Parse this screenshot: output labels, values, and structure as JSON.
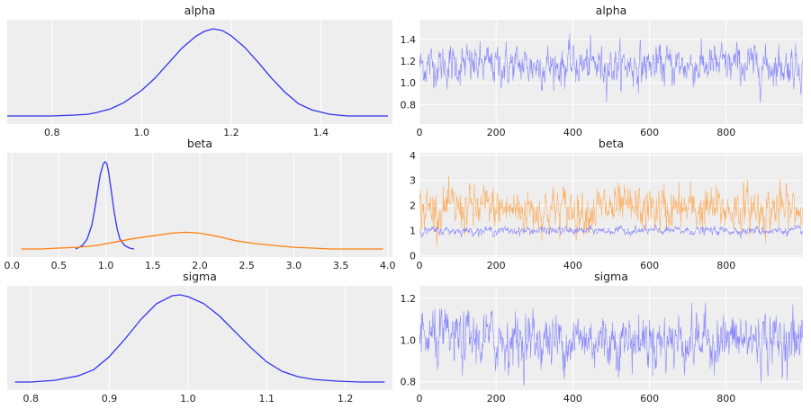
{
  "colors": {
    "blue": "#3333ee",
    "orange": "#ff7f0e",
    "trace_blue": "#6666ff",
    "trace_orange": "#ff9933",
    "panel_bg": "#eeeeee"
  },
  "chart_data": [
    {
      "type": "line",
      "kind": "density",
      "title": "alpha",
      "grid": true,
      "xlabel": "",
      "ylabel": "",
      "xlim": [
        0.7,
        1.56
      ],
      "xticks": [
        0.8,
        1.0,
        1.2,
        1.4
      ],
      "series": [
        {
          "color": "#3333ee",
          "x": [
            0.7,
            0.75,
            0.8,
            0.85,
            0.88,
            0.9,
            0.93,
            0.96,
            1.0,
            1.03,
            1.06,
            1.09,
            1.12,
            1.14,
            1.16,
            1.18,
            1.2,
            1.23,
            1.26,
            1.29,
            1.32,
            1.35,
            1.38,
            1.42,
            1.46,
            1.5,
            1.55
          ],
          "y": [
            0.01,
            0.01,
            0.01,
            0.02,
            0.03,
            0.05,
            0.09,
            0.16,
            0.3,
            0.44,
            0.61,
            0.78,
            0.91,
            0.97,
            1.0,
            0.98,
            0.92,
            0.79,
            0.62,
            0.44,
            0.28,
            0.15,
            0.08,
            0.03,
            0.01,
            0.01,
            0.01
          ]
        }
      ]
    },
    {
      "type": "line",
      "kind": "trace",
      "title": "alpha",
      "grid": true,
      "xlim": [
        0,
        1000
      ],
      "ylim": [
        0.62,
        1.58
      ],
      "xticks": [
        0,
        200,
        400,
        600,
        800
      ],
      "yticks": [
        0.8,
        1.0,
        1.2,
        1.4
      ],
      "series": [
        {
          "color": "#6666ff",
          "center": 1.16,
          "spread": 0.09
        }
      ]
    },
    {
      "type": "line",
      "kind": "density",
      "title": "beta",
      "grid": true,
      "xlim": [
        -0.05,
        4.05
      ],
      "xticks": [
        0.0,
        0.5,
        1.0,
        1.5,
        2.0,
        2.5,
        3.0,
        3.5,
        4.0
      ],
      "series": [
        {
          "color": "#3333ee",
          "x": [
            0.68,
            0.75,
            0.8,
            0.85,
            0.88,
            0.91,
            0.94,
            0.97,
            0.99,
            1.01,
            1.03,
            1.06,
            1.09,
            1.12,
            1.15,
            1.2,
            1.25,
            1.3
          ],
          "y": [
            0.01,
            0.05,
            0.12,
            0.28,
            0.45,
            0.65,
            0.85,
            0.97,
            1.0,
            0.98,
            0.88,
            0.65,
            0.42,
            0.24,
            0.12,
            0.05,
            0.02,
            0.01
          ]
        },
        {
          "color": "#ff7f0e",
          "x": [
            0.1,
            0.3,
            0.5,
            0.7,
            0.9,
            1.1,
            1.3,
            1.5,
            1.7,
            1.85,
            2.0,
            2.2,
            2.4,
            2.6,
            2.8,
            3.0,
            3.2,
            3.4,
            3.6,
            3.8,
            3.95
          ],
          "y": [
            0.01,
            0.01,
            0.02,
            0.03,
            0.05,
            0.09,
            0.13,
            0.16,
            0.19,
            0.2,
            0.19,
            0.15,
            0.1,
            0.07,
            0.05,
            0.03,
            0.02,
            0.01,
            0.01,
            0.01,
            0.01
          ]
        }
      ]
    },
    {
      "type": "line",
      "kind": "trace",
      "title": "beta",
      "grid": true,
      "xlim": [
        0,
        1000
      ],
      "ylim": [
        -0.05,
        4.1
      ],
      "xticks": [
        0,
        200,
        400,
        600,
        800
      ],
      "yticks": [
        0,
        1,
        2,
        3,
        4
      ],
      "series": [
        {
          "color": "#ff9933",
          "center": 1.85,
          "spread": 0.45
        },
        {
          "color": "#6666ff",
          "center": 1.0,
          "spread": 0.08
        }
      ]
    },
    {
      "type": "line",
      "kind": "density",
      "title": "sigma",
      "grid": true,
      "xlim": [
        0.77,
        1.26
      ],
      "xticks": [
        0.8,
        0.9,
        1.0,
        1.1,
        1.2
      ],
      "series": [
        {
          "color": "#3333ee",
          "x": [
            0.78,
            0.8,
            0.83,
            0.86,
            0.88,
            0.9,
            0.92,
            0.94,
            0.96,
            0.98,
            0.99,
            1.0,
            1.02,
            1.04,
            1.06,
            1.08,
            1.1,
            1.12,
            1.14,
            1.16,
            1.19,
            1.22,
            1.25
          ],
          "y": [
            0.01,
            0.01,
            0.03,
            0.08,
            0.15,
            0.3,
            0.5,
            0.72,
            0.9,
            0.99,
            1.0,
            0.98,
            0.9,
            0.76,
            0.58,
            0.4,
            0.24,
            0.13,
            0.07,
            0.04,
            0.02,
            0.01,
            0.01
          ]
        }
      ]
    },
    {
      "type": "line",
      "kind": "trace",
      "title": "sigma",
      "grid": true,
      "xlim": [
        0,
        1000
      ],
      "ylim": [
        0.76,
        1.26
      ],
      "xticks": [
        0,
        200,
        400,
        600,
        800
      ],
      "yticks": [
        0.8,
        1.0,
        1.2
      ],
      "series": [
        {
          "color": "#6666ff",
          "center": 1.0,
          "spread": 0.065
        }
      ]
    }
  ]
}
